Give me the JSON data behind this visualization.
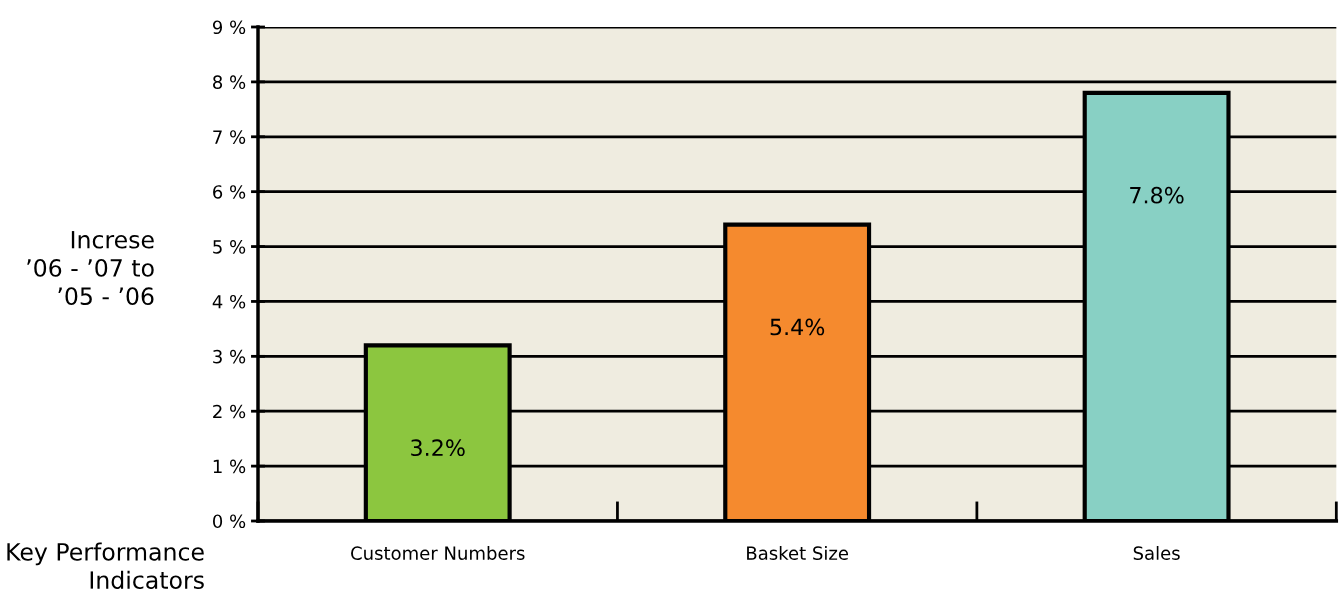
{
  "chart_data": {
    "type": "bar",
    "ylabel": "Increse\n’06 - ’07 to\n’05 - ’06",
    "xlabel": "Key Performance\nIndicators",
    "categories": [
      "Customer Numbers",
      "Basket Size",
      "Sales"
    ],
    "values": [
      3.2,
      5.4,
      7.8
    ],
    "colors": [
      "#8cc63f",
      "#f58a2e",
      "#88d0c4"
    ],
    "value_labels": [
      "3.2%",
      "5.4%",
      "7.8%"
    ],
    "ylim": [
      0,
      9
    ],
    "yticks": [
      {
        "value": 0,
        "label": "0 %"
      },
      {
        "value": 1,
        "label": "1 %"
      },
      {
        "value": 2,
        "label": "2 %"
      },
      {
        "value": 3,
        "label": "3 %"
      },
      {
        "value": 4,
        "label": "4 %"
      },
      {
        "value": 5,
        "label": "5 %"
      },
      {
        "value": 6,
        "label": "6 %"
      },
      {
        "value": 7,
        "label": "7 %"
      },
      {
        "value": 8,
        "label": "8 %"
      },
      {
        "value": 9,
        "label": "9 %"
      }
    ],
    "grid": "y",
    "legend": false
  }
}
